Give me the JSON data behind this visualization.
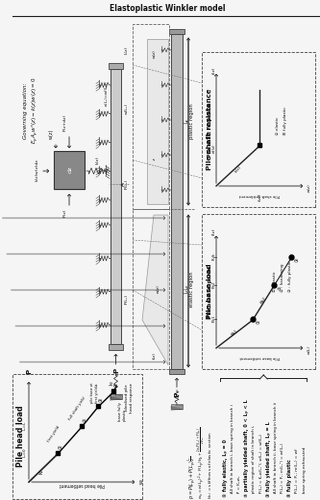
{
  "bg_color": "#f5f5f5",
  "line_color": "#222222",
  "gray_fill": "#999999",
  "light_gray": "#cccccc",
  "dark_gray": "#555555",
  "white": "#ffffff"
}
